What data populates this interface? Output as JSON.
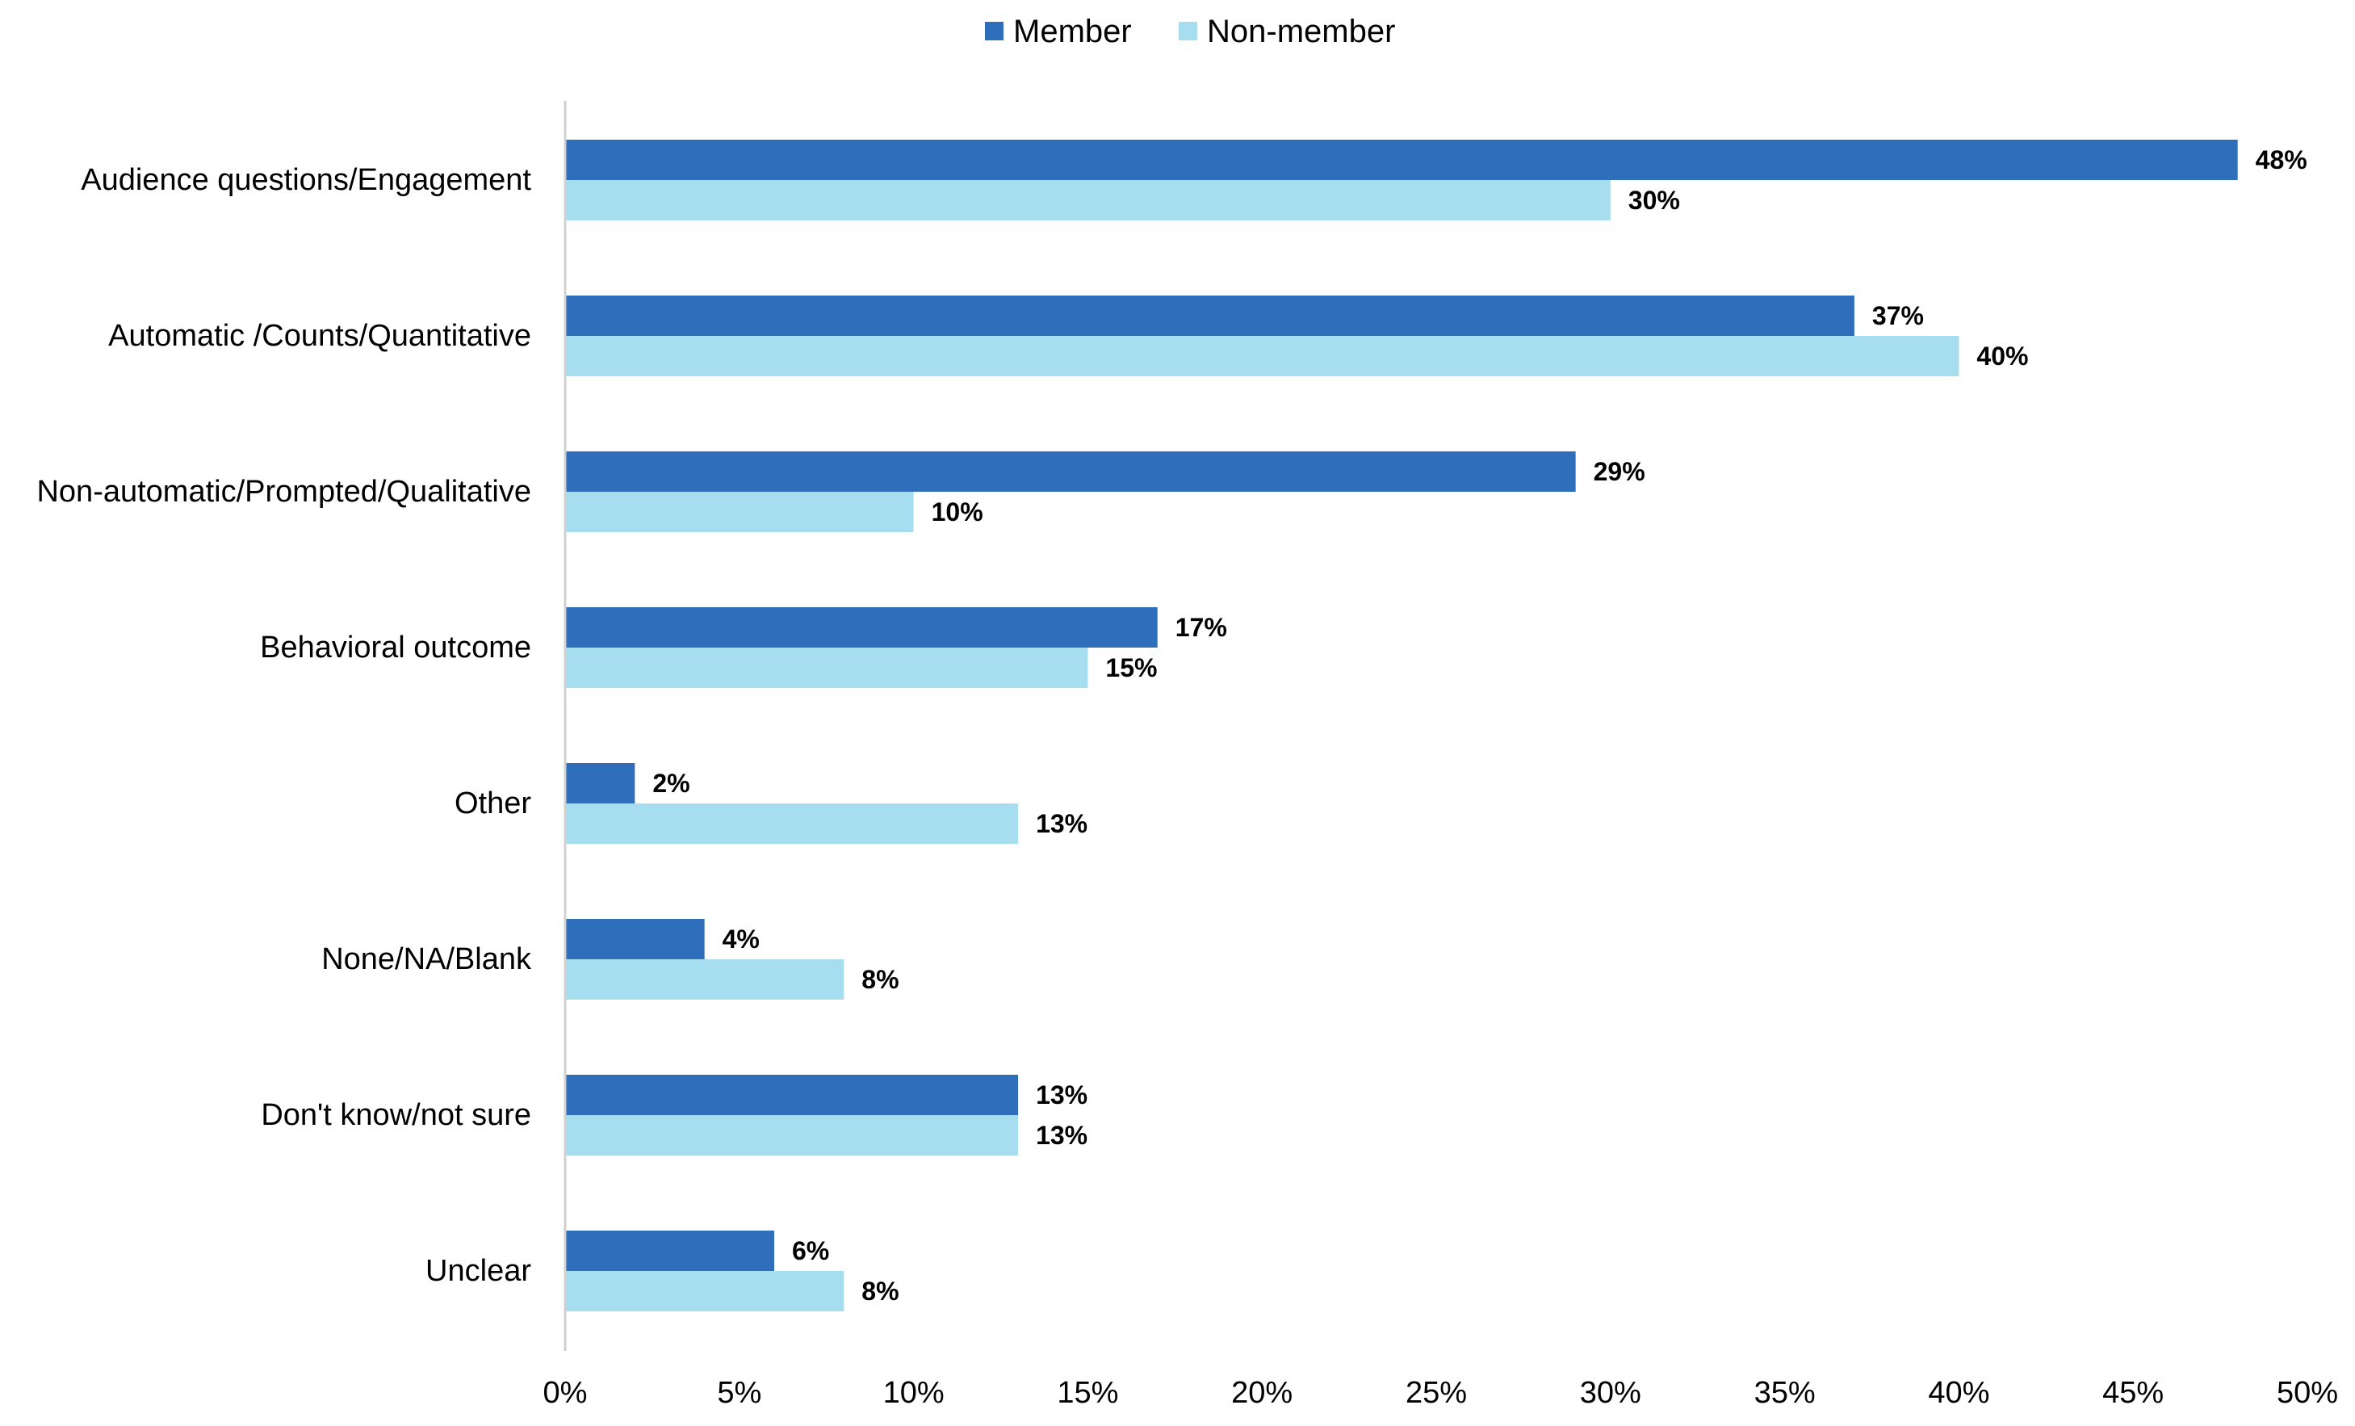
{
  "chart_data": {
    "type": "bar",
    "orientation": "horizontal",
    "title": "",
    "xlabel": "",
    "ylabel": "",
    "categories": [
      "Audience questions/Engagement",
      "Automatic /Counts/Quantitative",
      "Non-automatic/Prompted/Qualitative",
      "Behavioral outcome",
      "Other",
      "None/NA/Blank",
      "Don't know/not sure",
      "Unclear"
    ],
    "series": [
      {
        "name": "Member",
        "color": "#2F6EBA",
        "values": [
          48,
          37,
          29,
          17,
          2,
          4,
          13,
          6
        ],
        "labels": [
          "48%",
          "37%",
          "29%",
          "17%",
          "2%",
          "4%",
          "13%",
          "6%"
        ]
      },
      {
        "name": "Non-member",
        "color": "#A6DEEF",
        "values": [
          30,
          40,
          10,
          15,
          13,
          8,
          13,
          8
        ],
        "labels": [
          "30%",
          "40%",
          "10%",
          "15%",
          "13%",
          "8%",
          "13%",
          "8%"
        ]
      }
    ],
    "xlim": [
      0,
      50
    ],
    "xticks": [
      "0%",
      "5%",
      "10%",
      "15%",
      "20%",
      "25%",
      "30%",
      "35%",
      "40%",
      "45%",
      "50%"
    ],
    "legend_position": "top-center",
    "grid": false
  }
}
